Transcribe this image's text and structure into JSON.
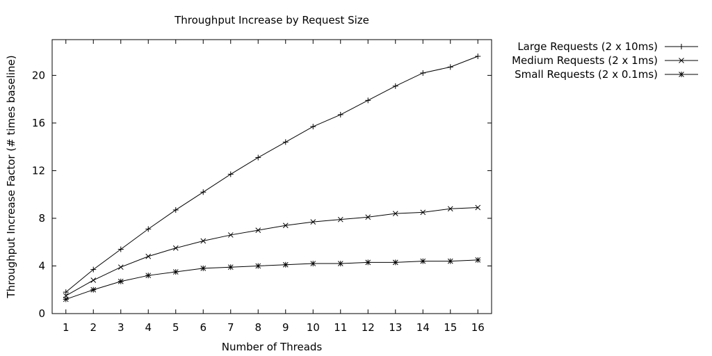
{
  "chart_data": {
    "type": "line",
    "title": "Throughput Increase by Request Size",
    "xlabel": "Number of Threads",
    "ylabel": "Throughput Increase Factor (# times baseline)",
    "x": [
      1,
      2,
      3,
      4,
      5,
      6,
      7,
      8,
      9,
      10,
      11,
      12,
      13,
      14,
      15,
      16
    ],
    "xlim": [
      0.5,
      16.5
    ],
    "ylim": [
      0,
      23
    ],
    "xticks": [
      "1",
      "2",
      "3",
      "4",
      "5",
      "6",
      "7",
      "8",
      "9",
      "10",
      "11",
      "12",
      "13",
      "14",
      "15",
      "16"
    ],
    "yticks": [
      "0",
      "4",
      "8",
      "12",
      "16",
      "20"
    ],
    "grid": false,
    "legend_position": "outside-top-right",
    "line_color": "#000000",
    "series": [
      {
        "name": "Large Requests (2 x 10ms)",
        "marker": "plus",
        "values": [
          1.8,
          3.7,
          5.4,
          7.1,
          8.7,
          10.2,
          11.7,
          13.1,
          14.4,
          15.7,
          16.7,
          17.9,
          19.1,
          20.2,
          20.7,
          21.6
        ]
      },
      {
        "name": "Medium Requests (2 x 1ms)",
        "marker": "cross",
        "values": [
          1.5,
          2.8,
          3.9,
          4.8,
          5.5,
          6.1,
          6.6,
          7.0,
          7.4,
          7.7,
          7.9,
          8.1,
          8.4,
          8.5,
          8.8,
          8.9
        ]
      },
      {
        "name": "Small Requests (2 x 0.1ms)",
        "marker": "star",
        "values": [
          1.2,
          2.0,
          2.7,
          3.2,
          3.5,
          3.8,
          3.9,
          4.0,
          4.1,
          4.2,
          4.2,
          4.3,
          4.3,
          4.4,
          4.4,
          4.5
        ]
      }
    ]
  }
}
